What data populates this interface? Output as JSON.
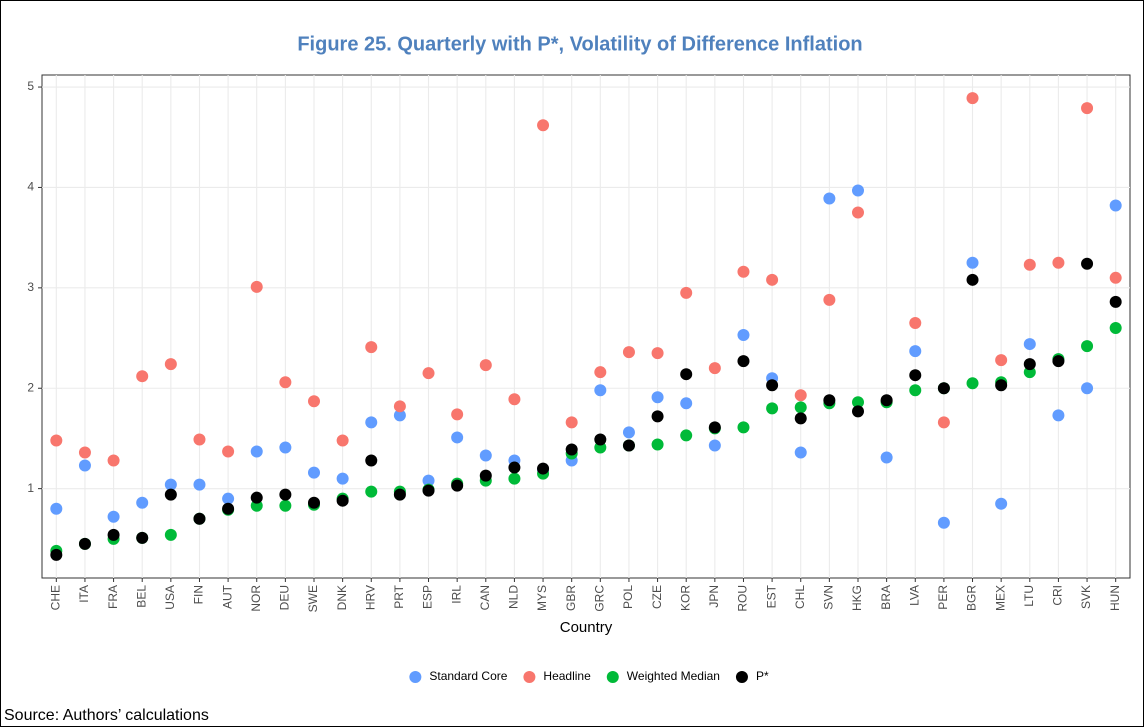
{
  "chart_data": {
    "type": "scatter",
    "title": "Figure 25. Quarterly with P*, Volatility of Difference Inflation",
    "x_label": "Country",
    "categories": [
      "CHE",
      "ITA",
      "FRA",
      "BEL",
      "USA",
      "FIN",
      "AUT",
      "NOR",
      "DEU",
      "SWE",
      "DNK",
      "HRV",
      "PRT",
      "ESP",
      "IRL",
      "CAN",
      "NLD",
      "MYS",
      "GBR",
      "GRC",
      "POL",
      "CZE",
      "KOR",
      "JPN",
      "ROU",
      "EST",
      "CHL",
      "SVN",
      "HKG",
      "BRA",
      "LVA",
      "PER",
      "BGR",
      "MEX",
      "LTU",
      "CRI",
      "SVK",
      "HUN"
    ],
    "series": [
      {
        "name": "Standard Core",
        "color": "#619CFF",
        "values": [
          0.8,
          1.23,
          0.72,
          0.86,
          1.04,
          1.04,
          0.9,
          1.37,
          1.41,
          1.16,
          1.1,
          1.66,
          1.73,
          1.08,
          1.51,
          1.33,
          1.28,
          1.19,
          1.28,
          1.98,
          1.56,
          1.91,
          1.85,
          1.43,
          2.53,
          2.1,
          1.36,
          3.89,
          3.97,
          1.31,
          2.37,
          0.66,
          3.25,
          0.85,
          2.44,
          1.73,
          2.0,
          3.82
        ]
      },
      {
        "name": "Headline",
        "color": "#F8766D",
        "values": [
          1.48,
          1.36,
          1.28,
          2.12,
          2.24,
          1.49,
          1.37,
          3.01,
          2.06,
          1.87,
          1.48,
          2.41,
          1.82,
          2.15,
          1.74,
          2.23,
          1.89,
          4.62,
          1.66,
          2.16,
          2.36,
          2.35,
          2.95,
          2.2,
          3.16,
          3.08,
          1.93,
          2.88,
          3.75,
          1.87,
          2.65,
          1.66,
          4.89,
          2.28,
          3.23,
          3.25,
          4.79,
          3.1
        ]
      },
      {
        "name": "Weighted Median",
        "color": "#00BA38",
        "values": [
          0.38,
          0.45,
          0.5,
          0.51,
          0.54,
          0.7,
          0.79,
          0.83,
          0.83,
          0.84,
          0.9,
          0.97,
          0.97,
          0.99,
          1.05,
          1.08,
          1.1,
          1.15,
          1.35,
          1.41,
          1.43,
          1.44,
          1.53,
          1.6,
          1.61,
          1.8,
          1.81,
          1.85,
          1.86,
          1.86,
          1.98,
          2.0,
          2.05,
          2.06,
          2.16,
          2.29,
          2.42,
          2.6
        ]
      },
      {
        "name": "P*",
        "color": "#000000",
        "values": [
          0.34,
          0.45,
          0.54,
          0.51,
          0.94,
          0.7,
          0.8,
          0.91,
          0.94,
          0.86,
          0.88,
          1.28,
          0.94,
          0.98,
          1.03,
          1.13,
          1.21,
          1.2,
          1.39,
          1.49,
          1.43,
          1.72,
          2.14,
          1.61,
          2.27,
          2.03,
          1.7,
          1.88,
          1.77,
          1.88,
          2.13,
          2.0,
          3.08,
          2.03,
          2.24,
          2.27,
          3.24,
          2.86
        ]
      }
    ],
    "ylim": [
      0.11,
      5.12
    ],
    "yticks": [
      1,
      2,
      3,
      4,
      5
    ],
    "grid": true,
    "legend": "bottom"
  },
  "source": "Source: Authors’ calculations"
}
